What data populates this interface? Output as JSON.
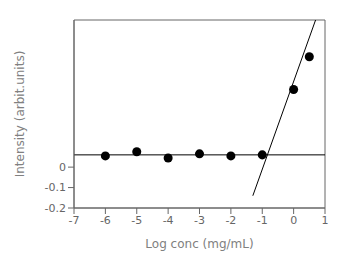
{
  "chart_data": {
    "type": "scatter",
    "xlabel": "Log conc (mg/mL)",
    "ylabel": "Intensity (arbit.units)",
    "xlim": [
      -7,
      1
    ],
    "ylim": [
      -0.2,
      0.72
    ],
    "xticks": [
      -7,
      -6,
      -5,
      -4,
      -3,
      -2,
      -1,
      0,
      1
    ],
    "yticks": [
      -0.2,
      -0.1,
      0
    ],
    "grid": false,
    "series": [
      {
        "type": "line",
        "color": "#000000",
        "x": [
          -7,
          1
        ],
        "values": [
          0.06,
          0.06
        ]
      },
      {
        "type": "line",
        "color": "#000000",
        "x": [
          -1.3,
          0.7
        ],
        "values": [
          -0.14,
          0.72
        ]
      },
      {
        "type": "scatter",
        "color": "#000000",
        "marker": "circle",
        "x": [
          -6,
          -5,
          -4,
          -3,
          -2,
          -1,
          0,
          0.5
        ],
        "values": [
          0.055,
          0.075,
          0.045,
          0.065,
          0.055,
          0.06,
          0.38,
          0.54
        ]
      }
    ]
  }
}
